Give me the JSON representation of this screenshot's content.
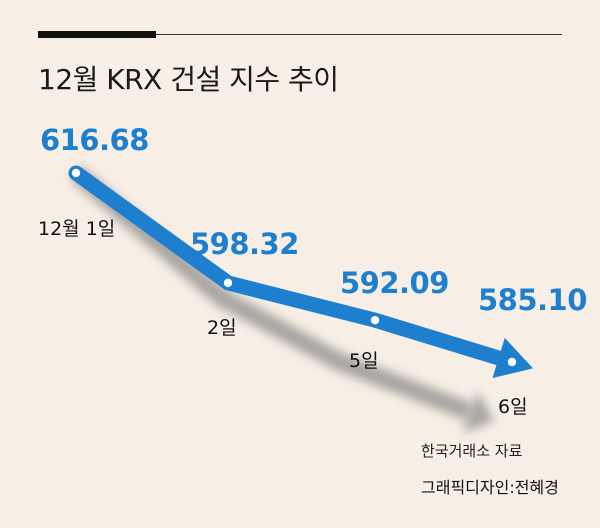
{
  "title": "12월 KRX 건설 지수 추이",
  "source": "한국거래소 자료",
  "credit": "그래픽디자인:전혜경",
  "colors": {
    "line": "#1f7fcf",
    "shadow": "#8c8c8c",
    "background": "#f7efe5",
    "text": "#111111"
  },
  "chart_data": {
    "type": "line",
    "title": "12월 KRX 건설 지수 추이",
    "categories": [
      "12월 1일",
      "2일",
      "5일",
      "6일"
    ],
    "category_labels": [
      "12월 1일",
      "2일",
      "5일",
      "6일"
    ],
    "values": [
      616.68,
      598.32,
      592.09,
      585.1
    ],
    "value_labels": [
      "616.68",
      "598.32",
      "592.09",
      "585.10"
    ],
    "xlabel": "",
    "ylabel": "",
    "grid": false,
    "legend": "none"
  }
}
